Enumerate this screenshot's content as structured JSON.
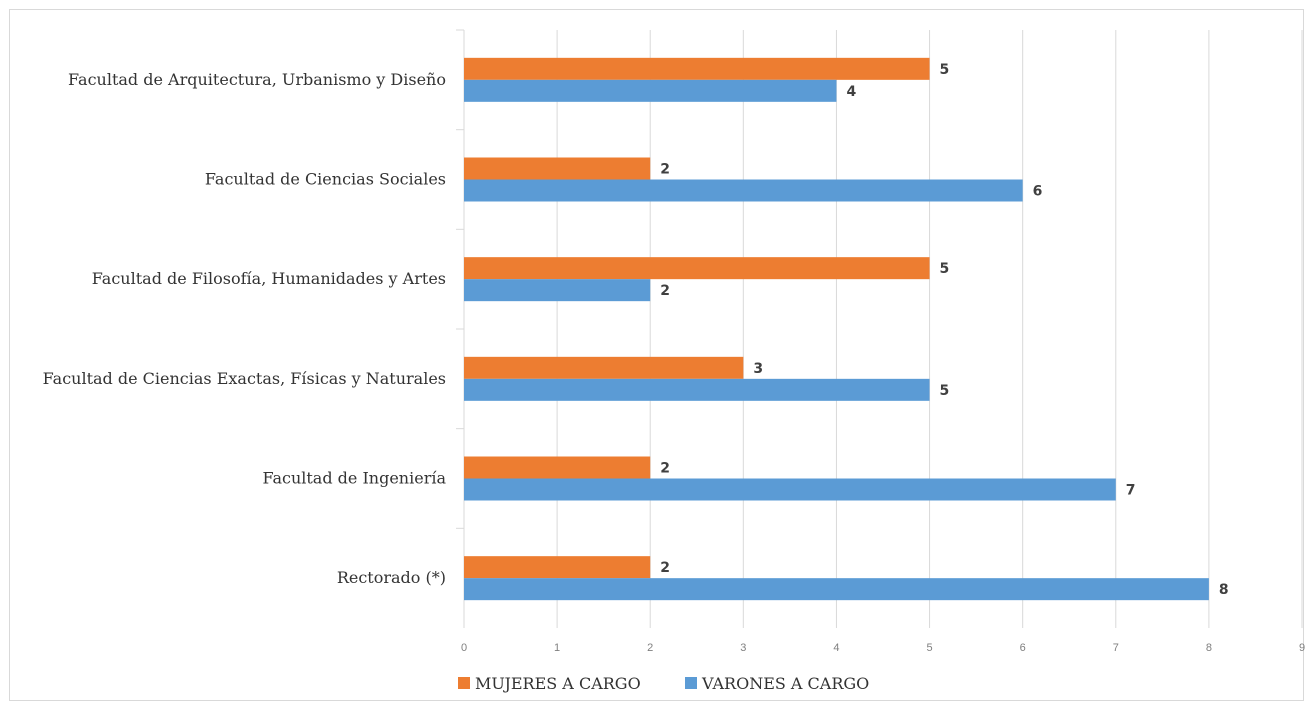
{
  "chart_data": {
    "type": "bar",
    "orientation": "horizontal",
    "categories": [
      "Facultad de Arquitectura, Urbanismo y Diseño",
      "Facultad de Ciencias Sociales",
      "Facultad de Filosofía, Humanidades y Artes",
      "Facultad de Ciencias Exactas, Físicas y Naturales",
      "Facultad de Ingeniería",
      "Rectorado (*)"
    ],
    "series": [
      {
        "name": "MUJERES A CARGO",
        "color": "#ed7d31",
        "values": [
          5,
          2,
          5,
          3,
          2,
          2
        ]
      },
      {
        "name": "VARONES A CARGO",
        "color": "#5b9bd5",
        "values": [
          4,
          6,
          2,
          5,
          7,
          8
        ]
      }
    ],
    "xlim": [
      0,
      9
    ],
    "xticks": [
      0,
      1,
      2,
      3,
      4,
      5,
      6,
      7,
      8,
      9
    ],
    "grid": true,
    "data_labels": true,
    "legend_position": "bottom"
  }
}
